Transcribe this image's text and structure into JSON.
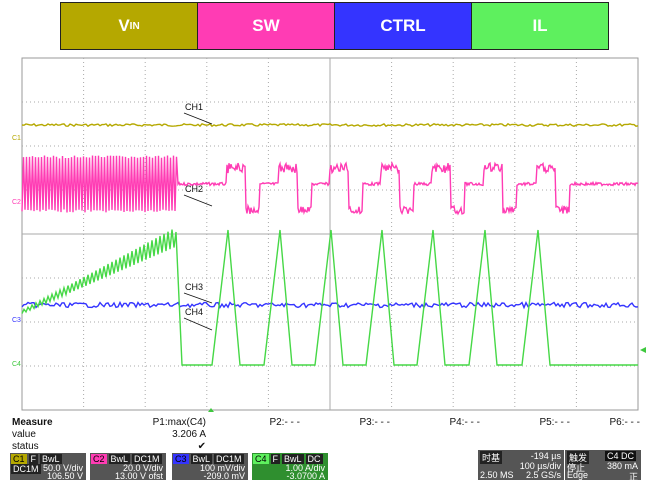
{
  "legend": [
    {
      "main": "V",
      "sub": "IN",
      "color": "#b5a800"
    },
    {
      "main": "SW",
      "color": "#ff3cb4"
    },
    {
      "main": "CTRL",
      "color": "#3434ff"
    },
    {
      "main": "IL",
      "color": "#5ef05e"
    }
  ],
  "traces": [
    {
      "name": "CH1",
      "marker": "C1"
    },
    {
      "name": "CH2",
      "marker": "C2"
    },
    {
      "name": "CH3",
      "marker": "C3"
    },
    {
      "name": "CH4",
      "marker": "C4"
    }
  ],
  "measure": {
    "title": "Measure",
    "row_value": "value",
    "row_status": "status",
    "p1": "P1:max(C4)",
    "p1_value": "3.206 A",
    "p1_status": "✔",
    "p2": "P2:- - -",
    "p3": "P3:- - -",
    "p4": "P4:- - -",
    "p5": "P5:- - -",
    "p6": "P6:- - -"
  },
  "channels": [
    {
      "id": "C1",
      "tags": [
        "F",
        "BwL",
        "DC1M"
      ],
      "scale": "50.0 V/div",
      "offset": "106.50 V"
    },
    {
      "id": "C2",
      "tags": [
        "BwL",
        "DC1M"
      ],
      "scale": "20.0 V/div",
      "offset": "13.00 V ofst"
    },
    {
      "id": "C3",
      "tags": [
        "BwL",
        "DC1M"
      ],
      "scale": "100 mV/div",
      "offset": "-209.0 mV"
    },
    {
      "id": "C4",
      "tags": [
        "F",
        "BwL",
        "DC"
      ],
      "scale": "1.00 A/div",
      "offset": "-3.0700 A"
    }
  ],
  "timebase": {
    "label": "时基",
    "delay": "-194 µs",
    "scale": "100 µs/div",
    "points": "2.50 MS",
    "rate": "2.5 GS/s"
  },
  "trigger": {
    "label": "触发",
    "source": "C4 DC",
    "state": "停止",
    "level": "380 mA",
    "mode": "Edge",
    "slope": "正"
  }
}
